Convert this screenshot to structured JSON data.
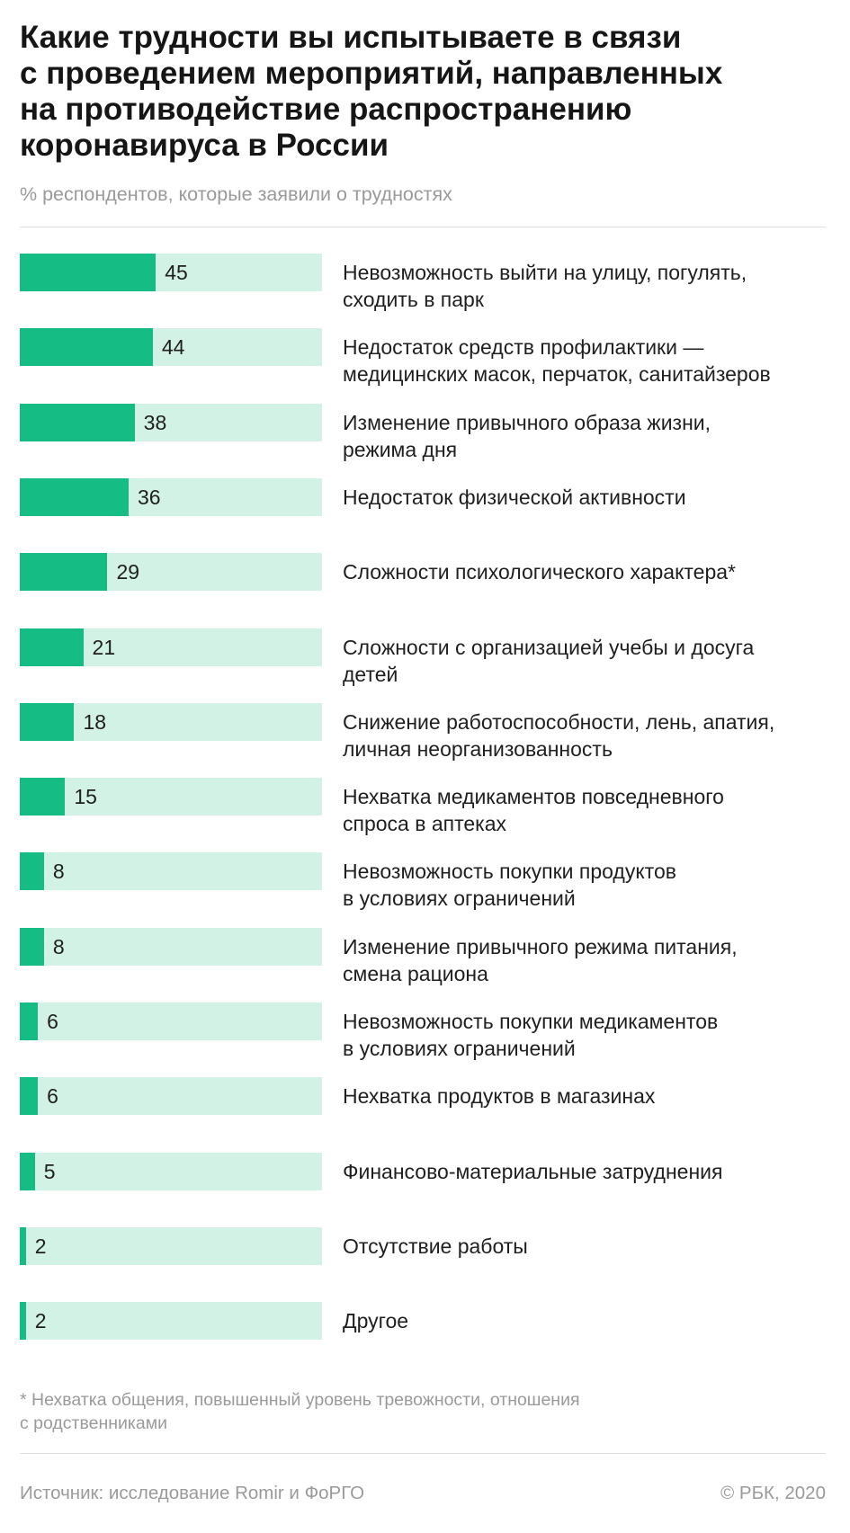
{
  "title": "Какие трудности вы испытываете в связи\nс проведением мероприятий, направленных\nна противодействие распространению\nкоронавируса в России",
  "subtitle": "% респондентов, которые заявили о трудностях",
  "footnote": "* Нехватка общения, повышенный уровень тревожности, отношения\nс родственниками",
  "source": "Источник: исследование Romir и ФоРГО",
  "copyright": "© РБК, 2020",
  "colors": {
    "bar_fill": "#15bd85",
    "bar_track": "#d2f2e6"
  },
  "chart_data": {
    "type": "bar",
    "orientation": "horizontal",
    "title": "Какие трудности вы испытываете в связи с проведением мероприятий, направленных на противодействие распространению коронавируса в России",
    "subtitle": "% респондентов, которые заявили о трудностях",
    "xlim": [
      0,
      100
    ],
    "grid": false,
    "categories": [
      "Невозможность выйти на улицу, погулять,\nсходить в парк",
      "Недостаток средств профилактики —\nмедицинских масок, перчаток, санитайзеров",
      "Изменение привычного образа жизни,\nрежима дня",
      "Недостаток физической активности",
      "Сложности психологического характера*",
      "Сложности с организацией учебы и досуга\nдетей",
      "Снижение работоспособности, лень, апатия,\nличная неорганизованность",
      "Нехватка медикаментов повседневного\nспроса в аптеках",
      "Невозможность покупки продуктов\nв условиях ограничений",
      "Изменение привычного режима питания,\nсмена рациона",
      "Невозможность покупки медикаментов\nв условиях ограничений",
      "Нехватка продуктов в магазинах",
      "Финансово-материальные затруднения",
      "Отсутствие работы",
      "Другое"
    ],
    "values": [
      45,
      44,
      38,
      36,
      29,
      21,
      18,
      15,
      8,
      8,
      6,
      6,
      5,
      2,
      2
    ]
  }
}
